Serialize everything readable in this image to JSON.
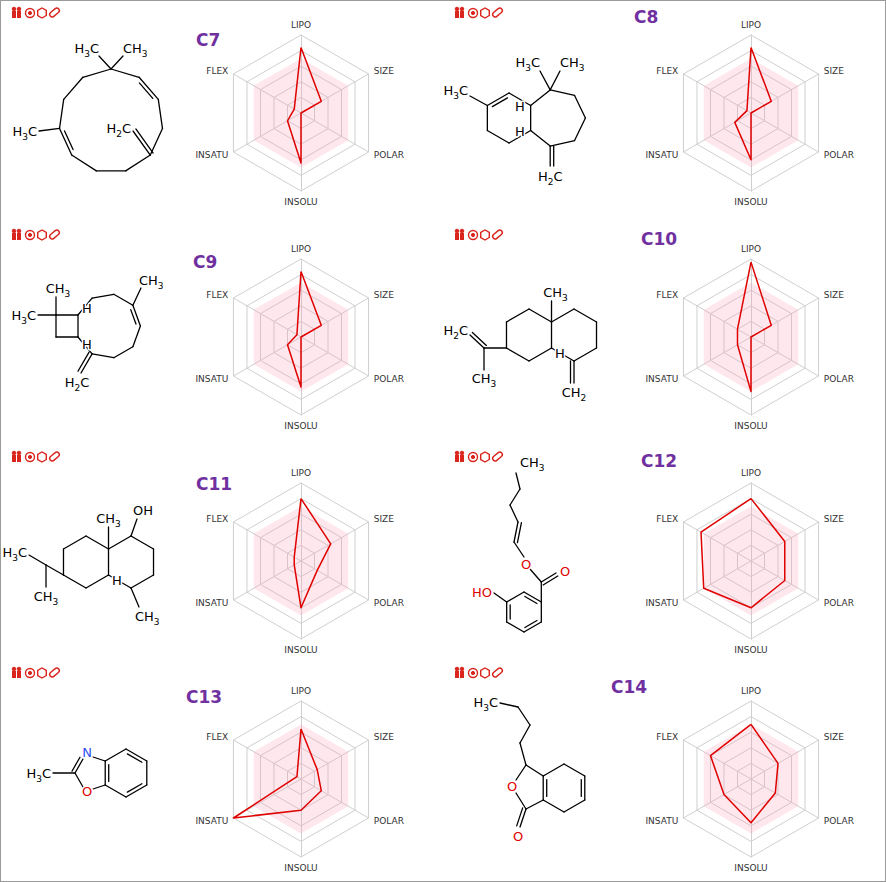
{
  "chart_data": [
    {
      "type": "radar",
      "title": "C7",
      "indicators": [
        "LIPO",
        "FLEX",
        "INSATU",
        "INSOLU",
        "POLAR",
        "SIZE"
      ],
      "values": [
        4.2,
        0.5,
        1.0,
        3.2,
        0,
        1.5
      ],
      "optimal_range": [
        3.5,
        3.5,
        3.5,
        3.5,
        3.5,
        3.5
      ],
      "rlim": [
        0,
        5
      ],
      "color": "#e00000",
      "tick_labels": false,
      "annotations": [
        {
          "text": "H3C",
          "color": "#000000"
        },
        {
          "text": "CH3",
          "color": "#000000"
        },
        {
          "text": "H3C",
          "color": "#000000"
        },
        {
          "text": "H2C",
          "color": "#000000"
        }
      ]
    },
    {
      "type": "radar",
      "title": "C8",
      "indicators": [
        "LIPO",
        "FLEX",
        "INSATU",
        "INSOLU",
        "POLAR",
        "SIZE"
      ],
      "values": [
        4.2,
        0.3,
        1.2,
        3.0,
        0,
        1.5
      ],
      "optimal_range": [
        3.5,
        3.5,
        3.5,
        3.5,
        3.5,
        3.5
      ],
      "rlim": [
        0,
        5
      ],
      "color": "#e00000",
      "tick_labels": false,
      "annotations": [
        {
          "text": "H3C",
          "color": "#000000"
        },
        {
          "text": "H3C",
          "color": "#000000"
        },
        {
          "text": "CH3",
          "color": "#000000"
        },
        {
          "text": "H2C",
          "color": "#000000"
        },
        {
          "text": "H",
          "color": "#000000"
        },
        {
          "text": "H",
          "color": "#000000"
        }
      ]
    },
    {
      "type": "radar",
      "title": "C9",
      "indicators": [
        "LIPO",
        "FLEX",
        "INSATU",
        "INSOLU",
        "POLAR",
        "SIZE"
      ],
      "values": [
        4.2,
        0.3,
        1.0,
        3.2,
        0,
        1.5
      ],
      "optimal_range": [
        3.5,
        3.5,
        3.5,
        3.5,
        3.5,
        3.5
      ],
      "rlim": [
        0,
        5
      ],
      "color": "#e00000",
      "tick_labels": false,
      "annotations": [
        {
          "text": "CH3",
          "color": "#000000"
        },
        {
          "text": "H3C",
          "color": "#000000"
        },
        {
          "text": "H",
          "color": "#000000"
        },
        {
          "text": "H",
          "color": "#000000"
        },
        {
          "text": "CH3",
          "color": "#000000"
        },
        {
          "text": "H2C",
          "color": "#000000"
        }
      ]
    },
    {
      "type": "radar",
      "title": "C10",
      "indicators": [
        "LIPO",
        "FLEX",
        "INSATU",
        "INSOLU",
        "POLAR",
        "SIZE"
      ],
      "values": [
        4.8,
        1.0,
        1.0,
        3.5,
        0,
        1.5
      ],
      "optimal_range": [
        3.5,
        3.5,
        3.5,
        3.5,
        3.5,
        3.5
      ],
      "rlim": [
        0,
        5
      ],
      "color": "#e00000",
      "tick_labels": false,
      "annotations": [
        {
          "text": "CH3",
          "color": "#000000"
        },
        {
          "text": "H",
          "color": "#000000"
        },
        {
          "text": "H2C",
          "color": "#000000"
        },
        {
          "text": "CH3",
          "color": "#000000"
        },
        {
          "text": "CH2",
          "color": "#000000"
        }
      ]
    },
    {
      "type": "radar",
      "title": "C11",
      "indicators": [
        "LIPO",
        "FLEX",
        "INSATU",
        "INSOLU",
        "POLAR",
        "SIZE"
      ],
      "values": [
        4.0,
        0.5,
        0.5,
        3.0,
        1.2,
        2.2
      ],
      "optimal_range": [
        3.5,
        3.5,
        3.5,
        3.5,
        3.5,
        3.5
      ],
      "rlim": [
        0,
        5
      ],
      "color": "#e00000",
      "tick_labels": false,
      "annotations": [
        {
          "text": "CH3",
          "color": "#000000"
        },
        {
          "text": "OH",
          "color": "#000000"
        },
        {
          "text": "H",
          "color": "#000000"
        },
        {
          "text": "CH3",
          "color": "#000000"
        },
        {
          "text": "H3C",
          "color": "#000000"
        },
        {
          "text": "CH3",
          "color": "#000000"
        }
      ]
    },
    {
      "type": "radar",
      "title": "C12",
      "indicators": [
        "LIPO",
        "FLEX",
        "INSATU",
        "INSOLU",
        "POLAR",
        "SIZE"
      ],
      "values": [
        4.0,
        3.7,
        3.5,
        3.0,
        2.5,
        2.5
      ],
      "optimal_range": [
        3.5,
        3.5,
        3.5,
        3.5,
        3.5,
        3.5
      ],
      "rlim": [
        0,
        5
      ],
      "color": "#e00000",
      "tick_labels": false,
      "annotations": [
        {
          "text": "CH3",
          "color": "#000000"
        },
        {
          "text": "O",
          "color": "#e00000"
        },
        {
          "text": "O",
          "color": "#e00000"
        },
        {
          "text": "HO",
          "color": "#e00000"
        }
      ]
    },
    {
      "type": "radar",
      "title": "C13",
      "indicators": [
        "LIPO",
        "FLEX",
        "INSATU",
        "INSOLU",
        "POLAR",
        "SIZE"
      ],
      "values": [
        3.2,
        0.3,
        5.0,
        2.0,
        1.5,
        1.2
      ],
      "optimal_range": [
        3.5,
        3.5,
        3.5,
        3.5,
        3.5,
        3.5
      ],
      "rlim": [
        0,
        5
      ],
      "color": "#e00000",
      "tick_labels": false,
      "annotations": [
        {
          "text": "N",
          "color": "#3050f8"
        },
        {
          "text": "O",
          "color": "#e00000"
        },
        {
          "text": "H3C",
          "color": "#000000"
        }
      ]
    },
    {
      "type": "radar",
      "title": "C14",
      "indicators": [
        "LIPO",
        "FLEX",
        "INSATU",
        "INSOLU",
        "POLAR",
        "SIZE"
      ],
      "values": [
        3.5,
        3.0,
        2.0,
        2.8,
        1.8,
        2.0
      ],
      "optimal_range": [
        3.5,
        3.5,
        3.5,
        3.5,
        3.5,
        3.5
      ],
      "rlim": [
        0,
        5
      ],
      "color": "#e00000",
      "tick_labels": false,
      "annotations": [
        {
          "text": "H3C",
          "color": "#000000"
        },
        {
          "text": "O",
          "color": "#e00000"
        },
        {
          "text": "O",
          "color": "#e00000"
        }
      ]
    }
  ]
}
